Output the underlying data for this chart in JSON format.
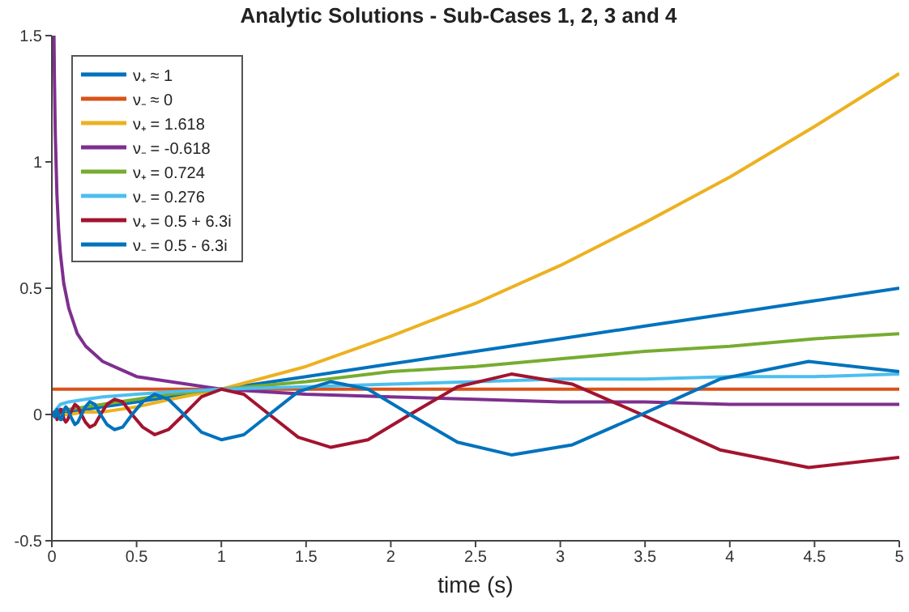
{
  "chart_data": {
    "type": "line",
    "title": "Analytic Solutions - Sub-Cases 1, 2, 3 and 4",
    "xlabel": "time (s)",
    "x": [
      0,
      0.05,
      0.1,
      0.2,
      0.3,
      0.5,
      0.7,
      1,
      1.5,
      2,
      2.5,
      3,
      3.5,
      4,
      4.5,
      5
    ],
    "series": [
      {
        "name": "ν₊ ≈ 1",
        "color": "#0072bd",
        "values": [
          0,
          0.01,
          0.01,
          0.02,
          0.03,
          0.05,
          0.07,
          0.1,
          0.15,
          0.2,
          0.25,
          0.3,
          0.35,
          0.4,
          0.45,
          0.5
        ]
      },
      {
        "name": "ν₋ ≈ 0",
        "color": "#d95319",
        "values": [
          0.1,
          0.1,
          0.1,
          0.1,
          0.1,
          0.1,
          0.1,
          0.1,
          0.1,
          0.1,
          0.1,
          0.1,
          0.1,
          0.1,
          0.1,
          0.1
        ]
      },
      {
        "name": "ν₊ = 1.618",
        "color": "#edb120",
        "values": [
          0,
          0,
          0,
          0.01,
          0.01,
          0.03,
          0.06,
          0.1,
          0.19,
          0.31,
          0.44,
          0.59,
          0.76,
          0.94,
          1.14,
          1.35
        ]
      },
      {
        "name": "ν₋ = -0.618",
        "color": "#7e2f8e",
        "x": [
          0.0125,
          0.015,
          0.02,
          0.03,
          0.04,
          0.05,
          0.07,
          0.1,
          0.15,
          0.2,
          0.3,
          0.4,
          0.5,
          0.7,
          1,
          1.5,
          2,
          2.5,
          3,
          3.5,
          4,
          4.5,
          5
        ],
        "values": [
          1.5,
          1.34,
          1.12,
          0.87,
          0.73,
          0.64,
          0.52,
          0.42,
          0.32,
          0.27,
          0.21,
          0.18,
          0.15,
          0.13,
          0.1,
          0.08,
          0.07,
          0.06,
          0.05,
          0.05,
          0.04,
          0.04,
          0.04
        ]
      },
      {
        "name": "ν₊ = 0.724",
        "color": "#77ac30",
        "values": [
          0,
          0.01,
          0.02,
          0.03,
          0.04,
          0.06,
          0.08,
          0.1,
          0.13,
          0.17,
          0.19,
          0.22,
          0.25,
          0.27,
          0.3,
          0.32
        ]
      },
      {
        "name": "ν₋ = 0.276",
        "color": "#4dbeee",
        "values": [
          0,
          0.04,
          0.05,
          0.06,
          0.07,
          0.08,
          0.09,
          0.1,
          0.11,
          0.12,
          0.13,
          0.14,
          0.14,
          0.15,
          0.15,
          0.16
        ]
      },
      {
        "name": "ν₊ = 0.5 + 6.3i",
        "color": "#a2142f",
        "x": [
          0.0112,
          0.0127,
          0.0144,
          0.0163,
          0.0185,
          0.021,
          0.0237,
          0.0269,
          0.0305,
          0.0345,
          0.0391,
          0.0443,
          0.0502,
          0.0568,
          0.0644,
          0.0729,
          0.0826,
          0.0936,
          0.106,
          0.12,
          0.136,
          0.154,
          0.1745,
          0.1977,
          0.224,
          0.2537,
          0.2874,
          0.3256,
          0.3688,
          0.4178,
          0.4733,
          0.5361,
          0.6073,
          0.6879,
          0.7793,
          0.8828,
          1,
          1.1328,
          1.2832,
          1.4536,
          1.6466,
          1.8653,
          2.113,
          2.3936,
          2.7115,
          3.0716,
          3.4795,
          3.9416,
          4.465,
          5
        ],
        "values": [
          -0.01,
          -0.01,
          0,
          0.01,
          0.01,
          0.01,
          0,
          -0.01,
          -0.02,
          -0.01,
          0,
          0.01,
          0.02,
          0.02,
          0,
          -0.02,
          -0.03,
          -0.02,
          0,
          0.02,
          0.04,
          0.03,
          0,
          -0.03,
          -0.05,
          -0.04,
          0,
          0.04,
          0.06,
          0.05,
          0,
          -0.05,
          -0.08,
          -0.06,
          0,
          0.07,
          0.1,
          0.08,
          0,
          -0.09,
          -0.13,
          -0.1,
          0,
          0.11,
          0.16,
          0.12,
          0,
          -0.14,
          -0.21,
          -0.17
        ]
      },
      {
        "name": "ν₋ = 0.5 - 6.3i",
        "color": "#0072bd",
        "x": [
          0.0112,
          0.0127,
          0.0144,
          0.0163,
          0.0185,
          0.021,
          0.0237,
          0.0269,
          0.0305,
          0.0345,
          0.0391,
          0.0443,
          0.0502,
          0.0568,
          0.0644,
          0.0729,
          0.0826,
          0.0936,
          0.106,
          0.12,
          0.136,
          0.154,
          0.1745,
          0.1977,
          0.224,
          0.2537,
          0.2874,
          0.3256,
          0.3688,
          0.4178,
          0.4733,
          0.5361,
          0.6073,
          0.6879,
          0.7793,
          0.8828,
          1,
          1.1328,
          1.2832,
          1.4536,
          1.6466,
          1.8653,
          2.113,
          2.3936,
          2.7115,
          3.0716,
          3.4795,
          3.9416,
          4.465,
          5
        ],
        "values": [
          0.01,
          0.01,
          0,
          -0.01,
          -0.01,
          -0.01,
          0,
          0.01,
          0.02,
          0.01,
          0,
          -0.01,
          -0.02,
          -0.02,
          0,
          0.02,
          0.03,
          0.02,
          0,
          -0.02,
          -0.04,
          -0.03,
          0,
          0.03,
          0.05,
          0.04,
          0,
          -0.04,
          -0.06,
          -0.05,
          0,
          0.05,
          0.08,
          0.06,
          0,
          -0.07,
          -0.1,
          -0.08,
          0,
          0.09,
          0.13,
          0.1,
          0,
          -0.11,
          -0.16,
          -0.12,
          0,
          0.14,
          0.21,
          0.17
        ]
      }
    ],
    "xlim": [
      0,
      5
    ],
    "xticks": [
      0,
      0.5,
      1,
      1.5,
      2,
      2.5,
      3,
      3.5,
      4,
      4.5,
      5
    ],
    "ylim": [
      -0.5,
      1.5
    ],
    "yticks": [
      -0.5,
      0,
      0.5,
      1,
      1.5
    ],
    "legend": "top left",
    "marker": "none",
    "line_style": "solid",
    "grid": false
  }
}
